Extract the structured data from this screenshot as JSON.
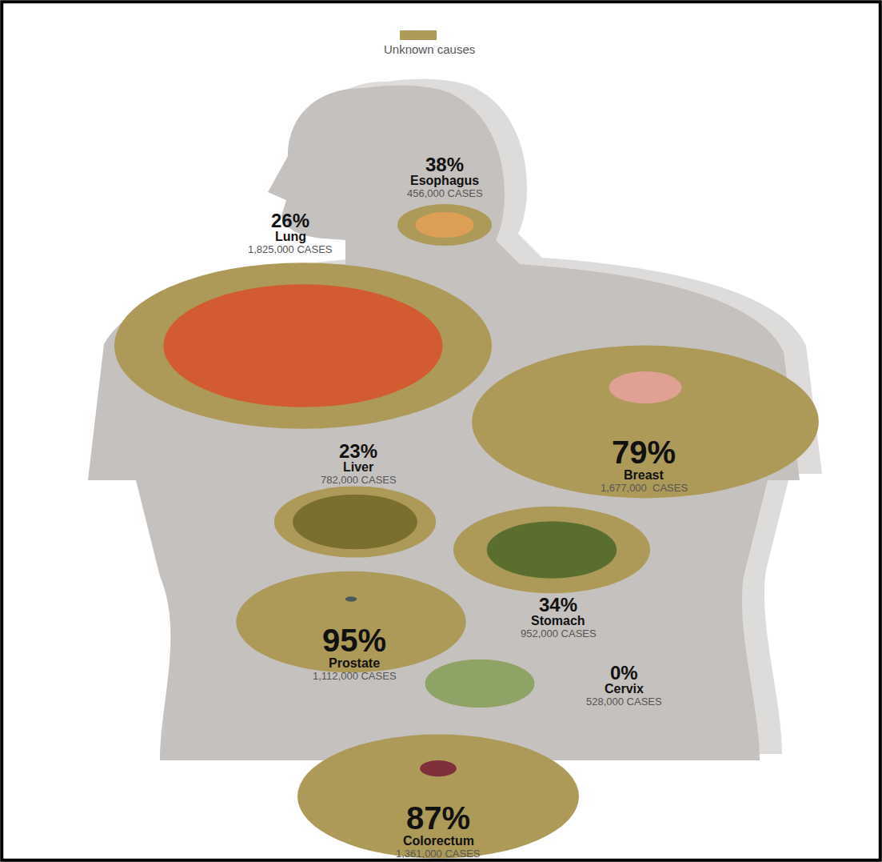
{
  "chart_data": {
    "type": "bubble",
    "categories": [
      "Esophagus",
      "Lung",
      "Breast",
      "Liver",
      "Stomach",
      "Prostate",
      "Cervix",
      "Colorectum"
    ],
    "series": [
      {
        "name": "Unknown causes",
        "color": "#ad9a58",
        "values": [
          38,
          26,
          79,
          23,
          34,
          95,
          0,
          87
        ]
      }
    ],
    "value_labels": [
      "38%",
      "26%",
      "79%",
      "23%",
      "34%",
      "95%",
      "0%",
      "87%"
    ],
    "cases": [
      456000,
      1825000,
      1677000,
      782000,
      952000,
      1112000,
      528000,
      1361000
    ],
    "cases_labels": [
      "456,000 CASES",
      "1,825,000 CASES",
      "1,677,000  CASES",
      "782,000 CASES",
      "952,000 CASES",
      "1,112,000 CASES",
      "528,000 CASES",
      "1,361,000 CASES"
    ],
    "colors": [
      "#dd9e55",
      "#d25b32",
      "#dfa193",
      "#7a6f2e",
      "#5a6e30",
      "#4a5a5a",
      "#8da466",
      "#80303a"
    ],
    "legend": "top",
    "tick_labels": false
  }
}
